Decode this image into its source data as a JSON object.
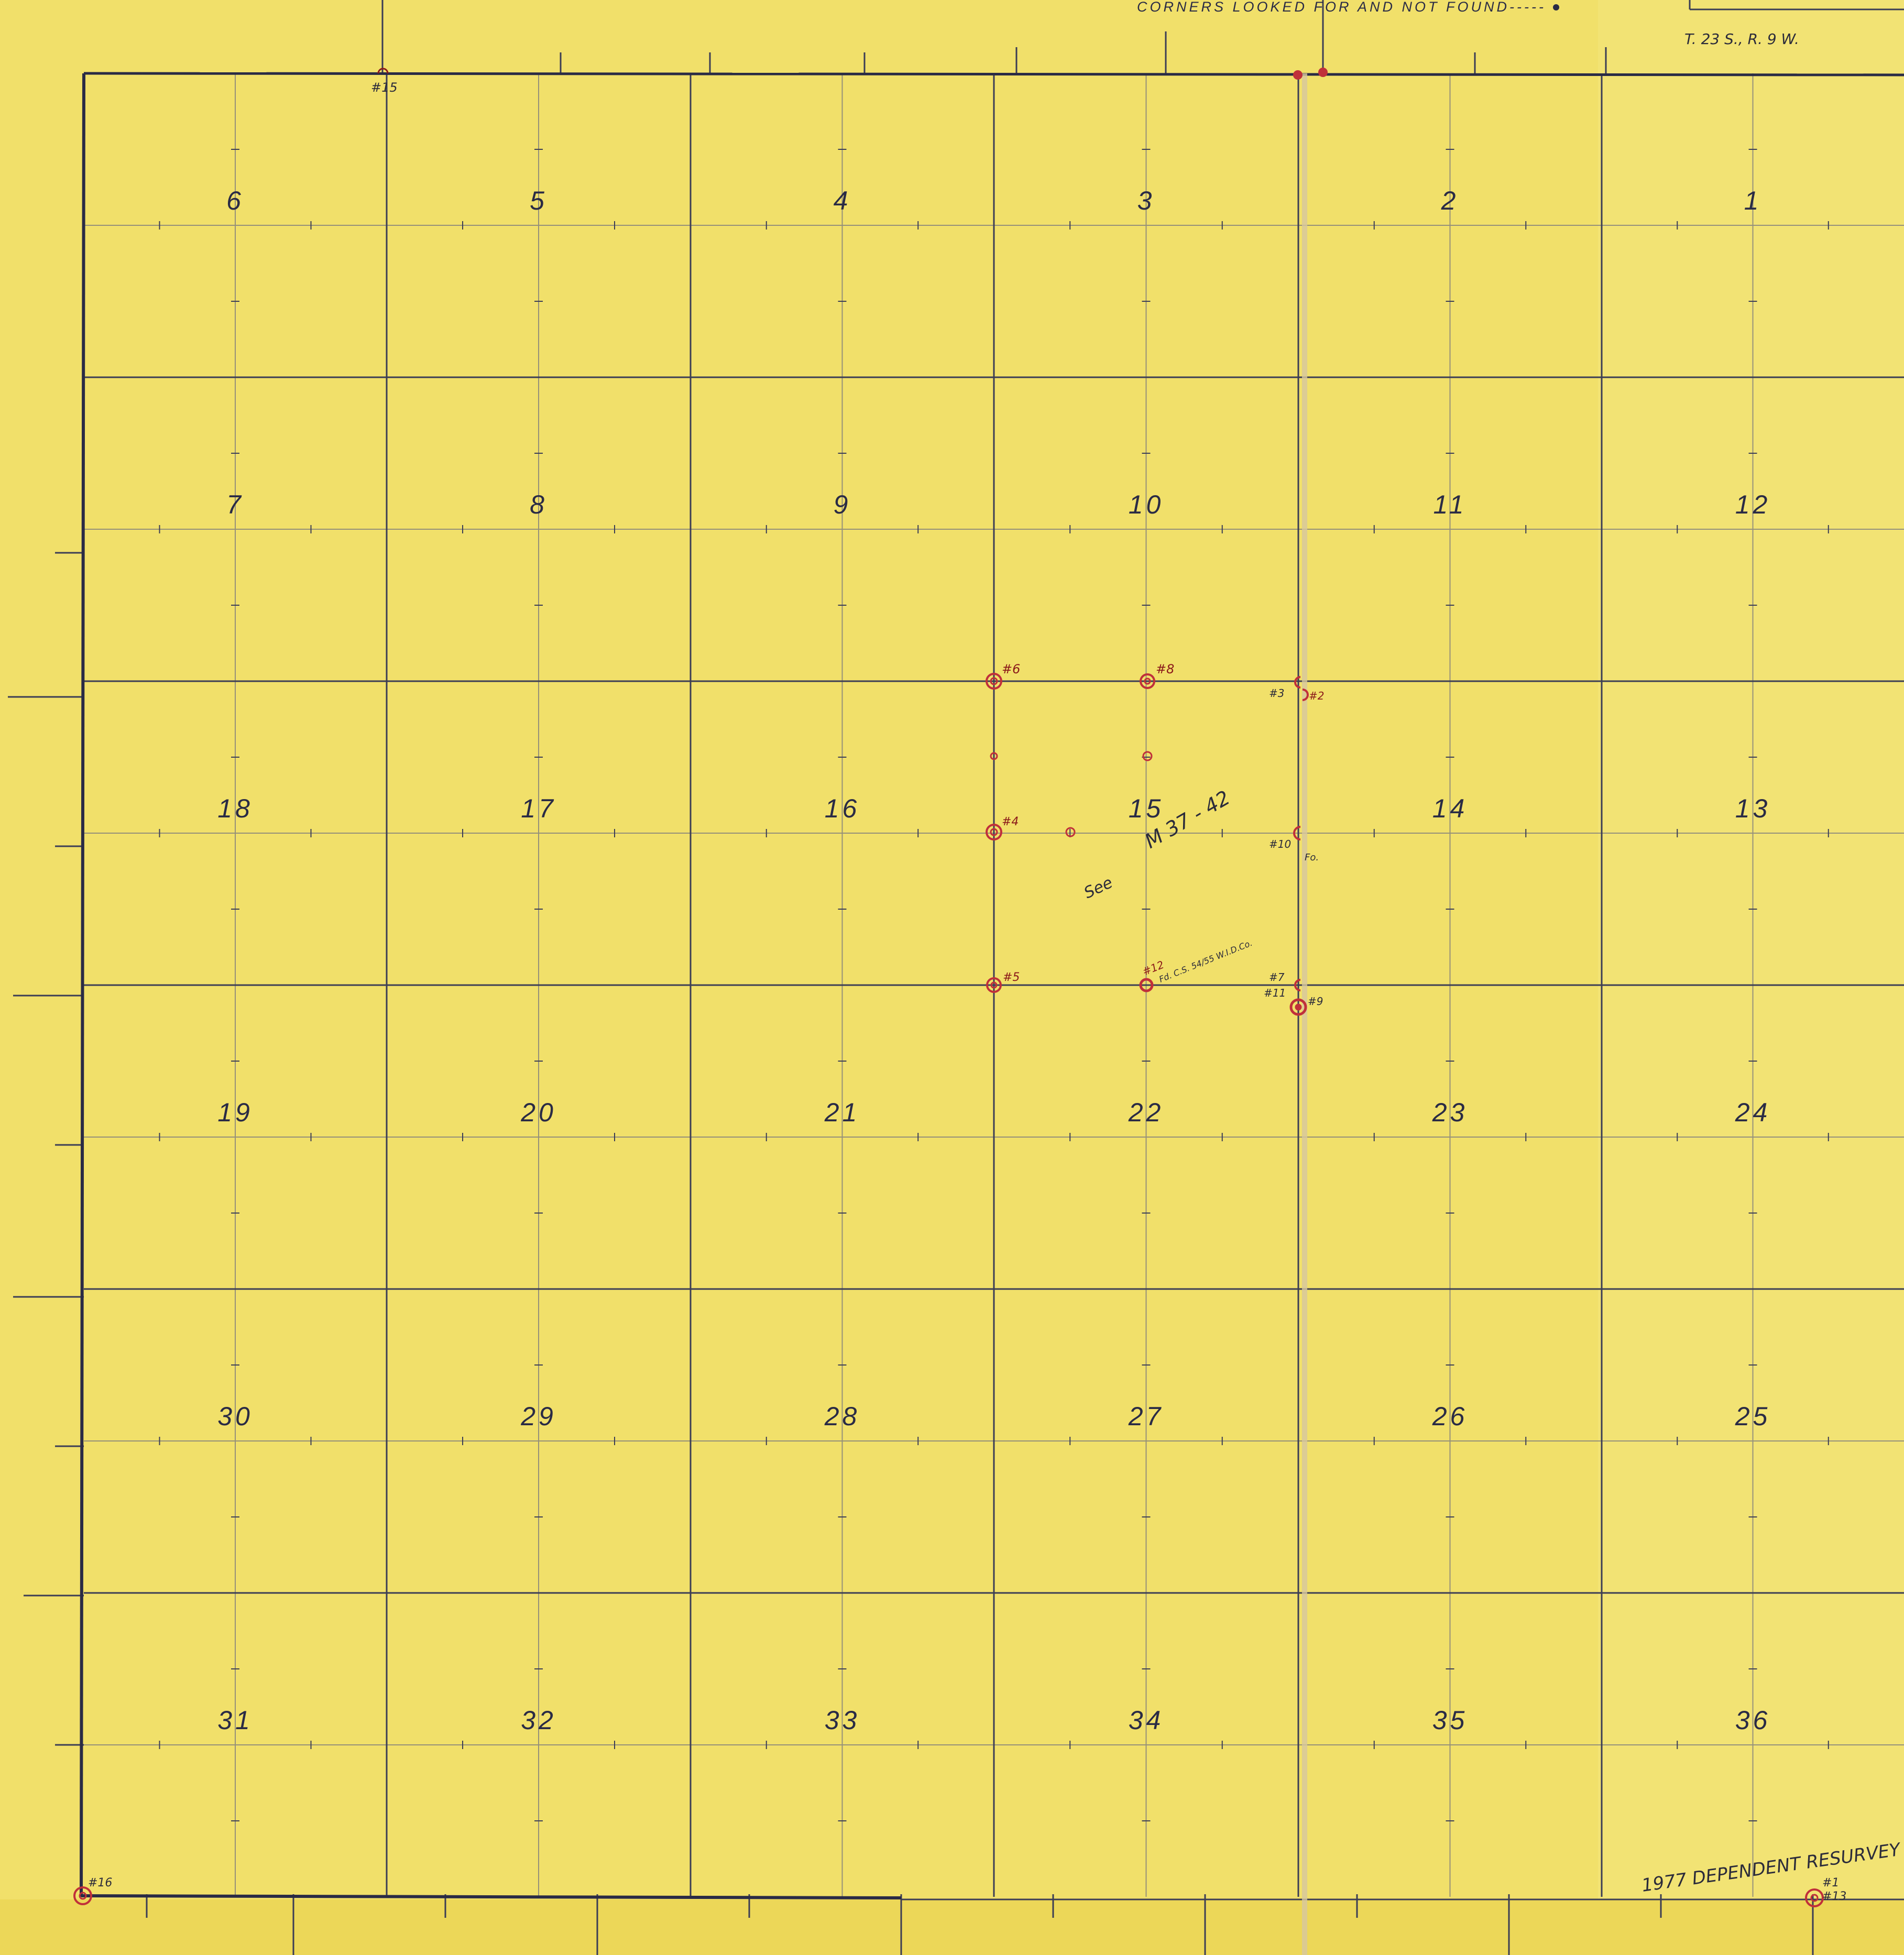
{
  "map": {
    "legend_text": "CORNERS LOOKED FOR AND NOT FOUND-----",
    "township_label": "T. 23 S., R. 9 W.",
    "resurvey_note": "1977 DEPENDENT RESURVEY",
    "see_note": "See",
    "record_ref": "M 37 - 42",
    "fd_note": "Fd. C.S. 54/55 W.I.D.Co.",
    "fo_note": "Fo.",
    "colors": {
      "paper": "#f1e06a",
      "grid": "#3b3d55",
      "marker": "#c0303a"
    },
    "sections": [
      [
        "6",
        "5",
        "4",
        "3",
        "2",
        "1"
      ],
      [
        "7",
        "8",
        "9",
        "10",
        "11",
        "12"
      ],
      [
        "18",
        "17",
        "16",
        "15",
        "14",
        "13"
      ],
      [
        "19",
        "20",
        "21",
        "22",
        "23",
        "24"
      ],
      [
        "30",
        "29",
        "28",
        "27",
        "26",
        "25"
      ],
      [
        "31",
        "32",
        "33",
        "34",
        "35",
        "36"
      ]
    ],
    "corner_labels": {
      "m15": "#15",
      "m16": "#16",
      "m6": "#6",
      "m8": "#8",
      "m3": "#3",
      "m2": "#2",
      "m4": "#4",
      "m10": "#10",
      "m5": "#5",
      "m12": "#12",
      "m7": "#7",
      "m11": "#11",
      "m9": "#9",
      "m1": "#1",
      "m13": "#13"
    }
  }
}
